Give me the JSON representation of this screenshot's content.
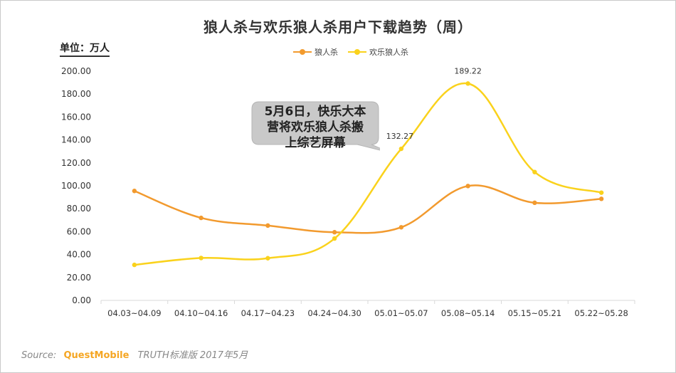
{
  "title": "狼人杀与欢乐狼人杀用户下载趋势（周）",
  "unit_label": "单位：万人",
  "callout": {
    "line1": "5月6日，快乐大本",
    "line2": "营将欢乐狼人杀搬",
    "line3": "上综艺屏幕"
  },
  "source": {
    "prefix": "Source:",
    "brand": "QuestMobile",
    "rest": "TRUTH标准版 2017年5月"
  },
  "colors": {
    "series1": "#f29a2e",
    "series2": "#fad21c",
    "callout_fill": "#c9c9c9",
    "axis": "#d9d9d9",
    "tick_text": "#333333"
  },
  "chart_data": {
    "type": "line",
    "title": "狼人杀与欢乐狼人杀用户下载趋势（周）",
    "ylabel": "单位：万人",
    "xlabel": "",
    "ylim": [
      0,
      200
    ],
    "y_ticks": [
      "0.00",
      "20.00",
      "40.00",
      "60.00",
      "80.00",
      "100.00",
      "120.00",
      "140.00",
      "160.00",
      "180.00",
      "200.00"
    ],
    "categories": [
      "04.03~04.09",
      "04.10~04.16",
      "04.17~04.23",
      "04.24~04.30",
      "05.01~05.07",
      "05.08~05.14",
      "05.15~05.21",
      "05.22~05.28"
    ],
    "series": [
      {
        "name": "狼人杀",
        "values": [
          95.5,
          72.0,
          65.3,
          59.5,
          63.8,
          99.8,
          85.2,
          88.6
        ]
      },
      {
        "name": "欢乐狼人杀",
        "values": [
          31.0,
          37.0,
          36.8,
          54.0,
          132.27,
          189.22,
          112.0,
          94.0
        ]
      }
    ],
    "data_labels": [
      {
        "series": 1,
        "index": 4,
        "text": "132.27"
      },
      {
        "series": 1,
        "index": 5,
        "text": "189.22"
      }
    ],
    "legend_position": "top-center",
    "grid": false
  }
}
